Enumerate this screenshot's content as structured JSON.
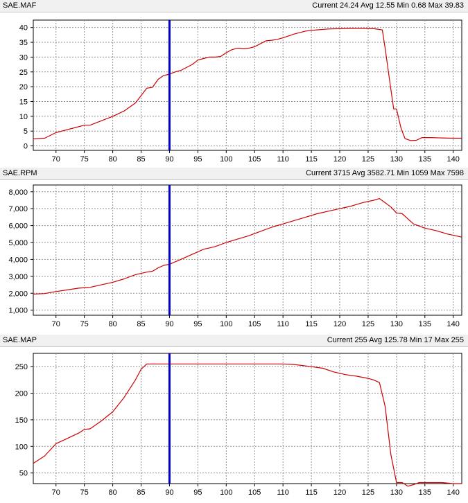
{
  "cursor_x": 90,
  "line_color": "#cc0000",
  "cursor_color": "#0000cc",
  "grid_color": "#909090",
  "x_axis": {
    "min": 66,
    "max": 141.5,
    "ticks": [
      "70",
      "75",
      "80",
      "85",
      "90",
      "95",
      "100",
      "105",
      "110",
      "115",
      "120",
      "125",
      "130",
      "135",
      "140"
    ]
  },
  "panels": [
    {
      "title": "SAE.MAF",
      "stats": "Current 24.24 Avg 12.55 Min 0.68 Max 39.83",
      "chart_data": {
        "type": "line",
        "ylim": [
          -1.5,
          42.5
        ],
        "yticks": [
          "0",
          "5",
          "10",
          "15",
          "20",
          "25",
          "30",
          "35",
          "40"
        ],
        "x": [
          66,
          68,
          70,
          73,
          75,
          76,
          78,
          80,
          82,
          84,
          85,
          86,
          87,
          88,
          89,
          90,
          91,
          92,
          93,
          94,
          95,
          96,
          97,
          98,
          99,
          100,
          101,
          102,
          103,
          104,
          105,
          106,
          107,
          108,
          109,
          110,
          112,
          114,
          116,
          118,
          120,
          122,
          124,
          126,
          127.5,
          128,
          128.8,
          129.5,
          130,
          130.8,
          131.5,
          132.5,
          133.5,
          134.5,
          135,
          136,
          138,
          140,
          141.5
        ],
        "y": [
          2.4,
          2.6,
          4.5,
          6,
          7,
          7,
          8.5,
          10,
          11.8,
          14.5,
          17,
          19.5,
          19.8,
          22.5,
          23.8,
          24.24,
          25,
          25.5,
          26.5,
          27.5,
          29,
          29.5,
          30,
          30,
          30.2,
          31.5,
          32.5,
          33,
          32.8,
          33,
          33.5,
          34.5,
          35.5,
          35.7,
          36,
          36.5,
          37.8,
          38.8,
          39.2,
          39.5,
          39.6,
          39.7,
          39.7,
          39.6,
          39.2,
          33,
          22,
          12.5,
          12.5,
          6,
          2.5,
          1.8,
          1.9,
          2.8,
          2.8,
          2.8,
          2.7,
          2.6,
          2.6
        ]
      }
    },
    {
      "title": "SAE.RPM",
      "stats": "Current 3715 Avg 3582.71 Min 1059 Max 7598",
      "chart_data": {
        "type": "line",
        "ylim": [
          700,
          8400
        ],
        "yticks": [
          "1,000",
          "2,000",
          "3,000",
          "4,000",
          "5,000",
          "6,000",
          "7,000",
          "8,000"
        ],
        "x": [
          66,
          68,
          70,
          72,
          74,
          76,
          78,
          80,
          82,
          84,
          86,
          87,
          88,
          89,
          90,
          92,
          94,
          96,
          98,
          100,
          102,
          104,
          106,
          108,
          110,
          112,
          114,
          116,
          118,
          120,
          122,
          124,
          126,
          127,
          128,
          129,
          130,
          131,
          132,
          133,
          135,
          137,
          139,
          141.5
        ],
        "y": [
          1950,
          1980,
          2100,
          2200,
          2300,
          2350,
          2500,
          2650,
          2850,
          3100,
          3250,
          3300,
          3500,
          3650,
          3715,
          4000,
          4300,
          4600,
          4750,
          5000,
          5200,
          5400,
          5650,
          5900,
          6100,
          6300,
          6500,
          6700,
          6850,
          7000,
          7150,
          7350,
          7500,
          7598,
          7350,
          7100,
          6750,
          6700,
          6400,
          6100,
          5850,
          5700,
          5500,
          5320
        ]
      }
    },
    {
      "title": "SAE.MAP",
      "stats": "Current 255 Avg 125.78 Min 17 Max 255",
      "chart_data": {
        "type": "line",
        "ylim": [
          30,
          275
        ],
        "yticks": [
          "50",
          "100",
          "150",
          "200",
          "250"
        ],
        "x": [
          66,
          68,
          70,
          72,
          74,
          75,
          76,
          78,
          80,
          82,
          84,
          85,
          86,
          88,
          90,
          92,
          95,
          100,
          105,
          110,
          112,
          115,
          117,
          119,
          121,
          123,
          125,
          126,
          127,
          128,
          129,
          130,
          131,
          132,
          133,
          134,
          136,
          138,
          140,
          141.5
        ],
        "y": [
          68,
          82,
          105,
          115,
          125,
          132,
          133,
          148,
          165,
          192,
          225,
          245,
          255,
          255,
          255,
          255,
          255,
          255,
          255,
          255,
          254,
          250,
          247,
          240,
          235,
          232,
          228,
          225,
          220,
          175,
          85,
          32,
          32,
          25,
          28,
          32,
          32,
          32,
          30,
          30
        ]
      }
    }
  ]
}
